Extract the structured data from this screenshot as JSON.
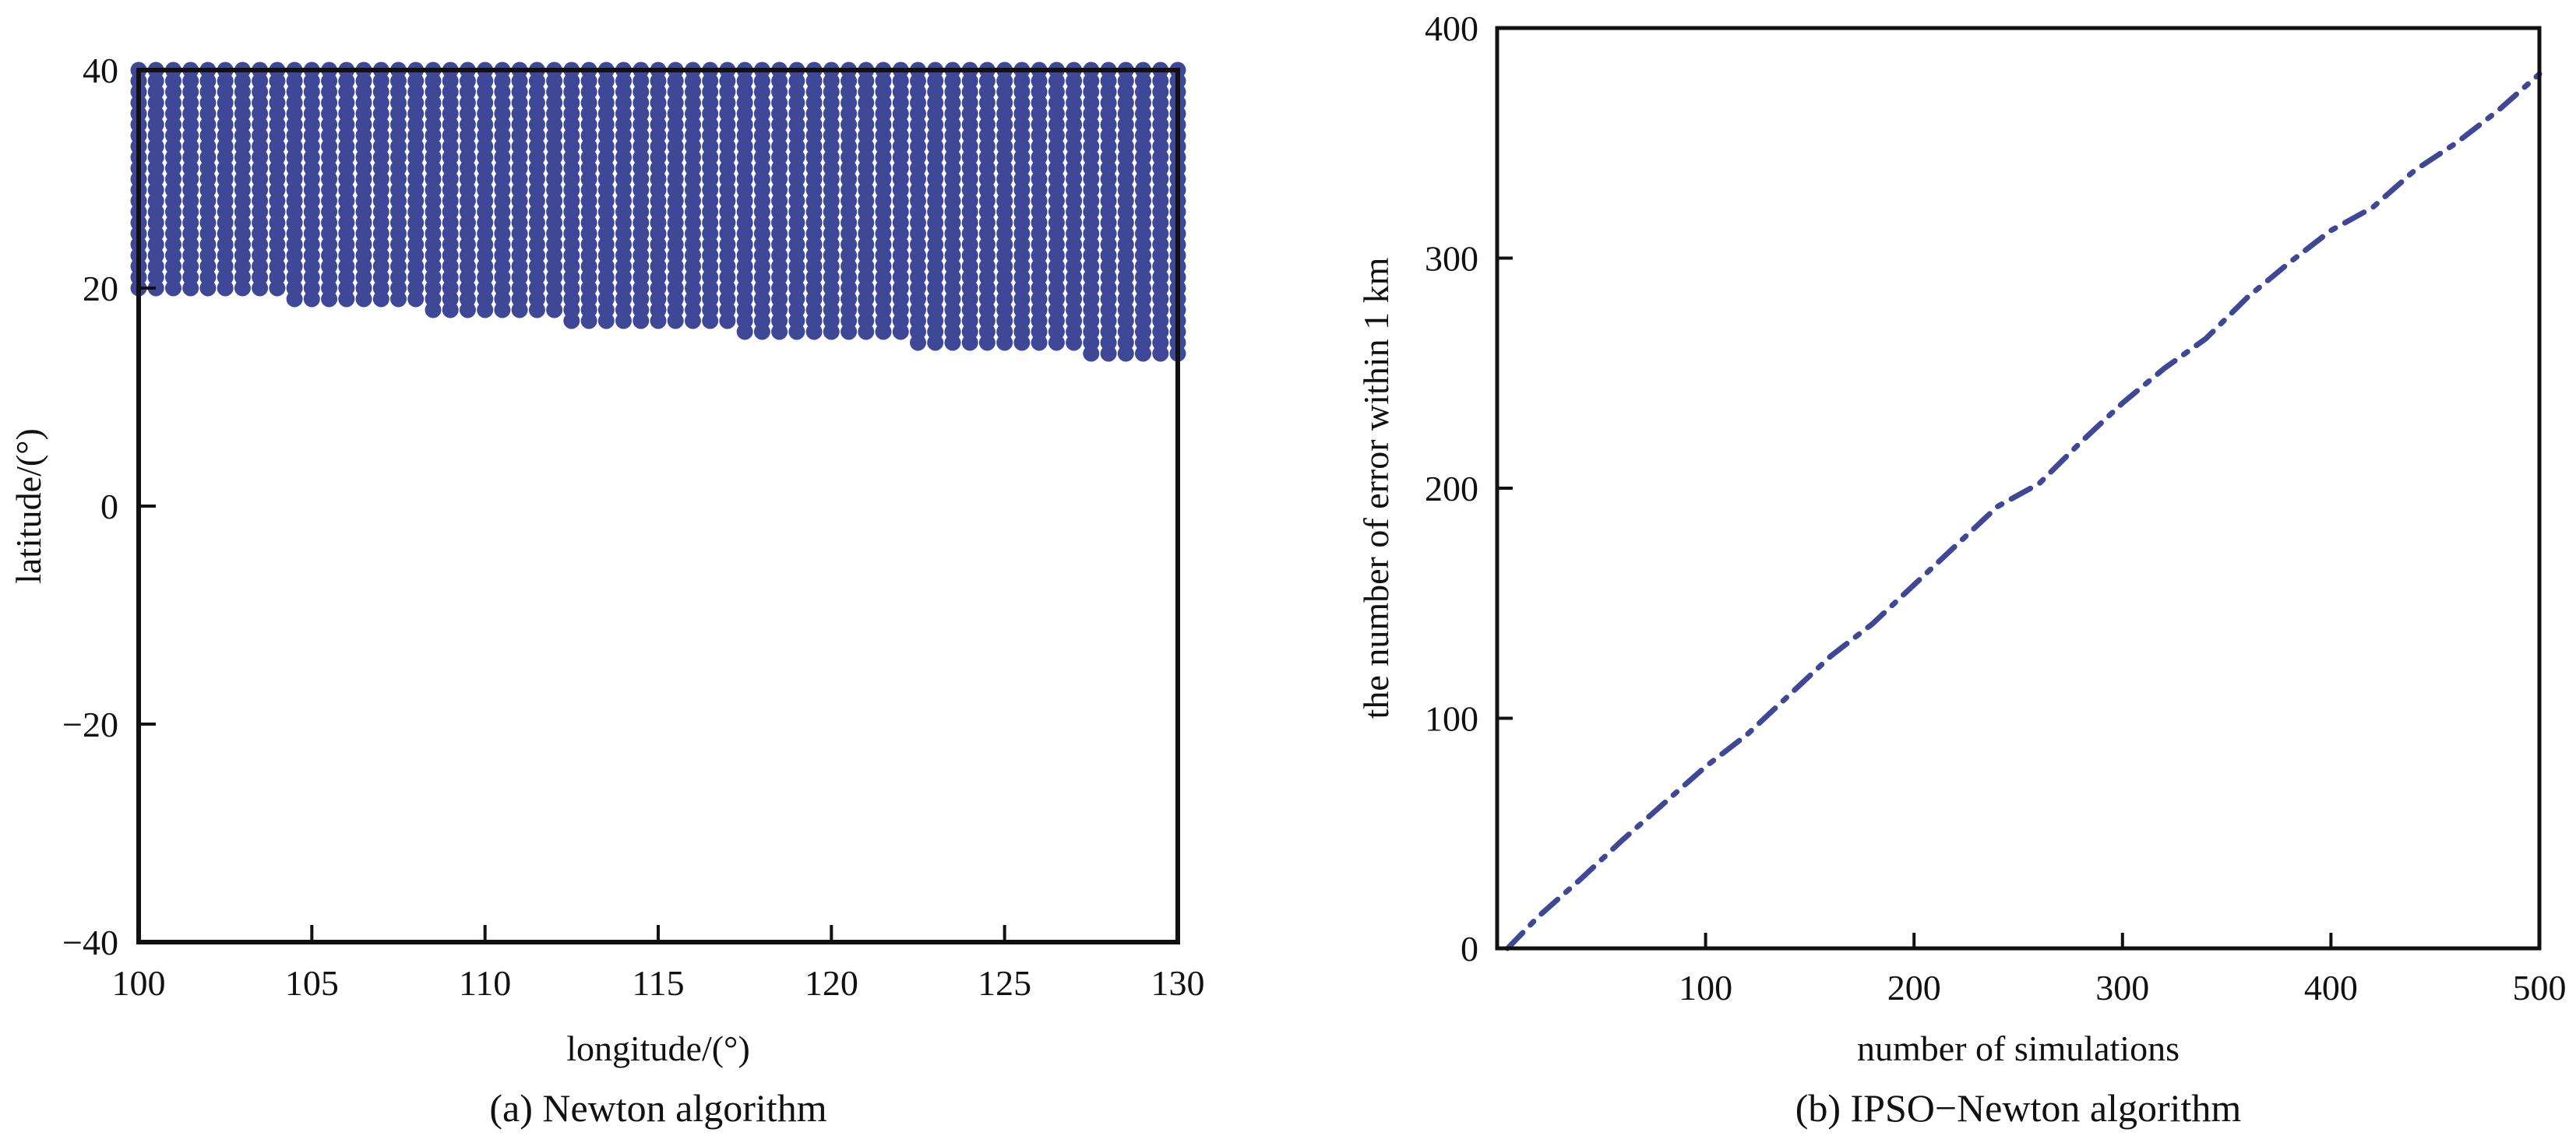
{
  "chart_data": [
    {
      "id": "a",
      "type": "scatter",
      "caption": "(a) Newton algorithm",
      "xlabel": "longitude/(°)",
      "ylabel": "latitude/(°)",
      "xlim": [
        100,
        130
      ],
      "ylim": [
        -40,
        40
      ],
      "xticks": [
        100,
        105,
        110,
        115,
        120,
        125,
        130
      ],
      "yticks": [
        -40,
        -20,
        0,
        20,
        40
      ],
      "grid": false,
      "marker_color": "#3F4896",
      "region": {
        "description_points_from": "dense grid of points spanning x 100–130, y from lower boundary to 40",
        "x_step": 0.5,
        "y_step": 1,
        "upper_lat": 40,
        "lower_boundary": [
          {
            "x_from": 100,
            "x_to": 104.5,
            "lat": 20
          },
          {
            "x_from": 104.5,
            "x_to": 108.5,
            "lat": 19
          },
          {
            "x_from": 108.5,
            "x_to": 112.5,
            "lat": 18
          },
          {
            "x_from": 112.5,
            "x_to": 117.5,
            "lat": 17
          },
          {
            "x_from": 117.5,
            "x_to": 122.5,
            "lat": 16
          },
          {
            "x_from": 122.5,
            "x_to": 127.5,
            "lat": 15
          },
          {
            "x_from": 127.5,
            "x_to": 130,
            "lat": 14
          }
        ]
      }
    },
    {
      "id": "b",
      "type": "line",
      "caption": "(b) IPSO−Newton algorithm",
      "xlabel": "number of simulations",
      "ylabel": "the number of error within 1 km",
      "xlim": [
        0,
        500
      ],
      "ylim": [
        0,
        400
      ],
      "xticks": [
        100,
        200,
        300,
        400,
        500
      ],
      "yticks": [
        0,
        100,
        200,
        300,
        400
      ],
      "grid": false,
      "line_color": "#3F4896",
      "line_style": "dash-dot",
      "x": [
        5,
        20,
        40,
        60,
        80,
        100,
        120,
        140,
        160,
        180,
        200,
        220,
        240,
        260,
        280,
        300,
        320,
        340,
        360,
        380,
        400,
        420,
        440,
        460,
        480,
        500
      ],
      "y": [
        0,
        14,
        30,
        47,
        63,
        79,
        93,
        110,
        127,
        141,
        158,
        175,
        192,
        202,
        220,
        237,
        252,
        265,
        283,
        298,
        312,
        322,
        338,
        350,
        364,
        380
      ]
    }
  ]
}
